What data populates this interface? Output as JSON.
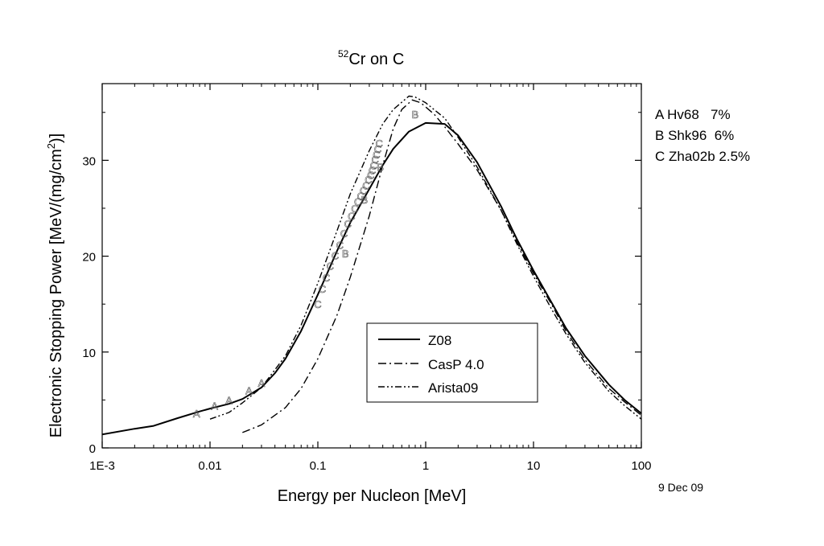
{
  "chart_data": {
    "type": "line",
    "title_sup": "52",
    "title_main": "Cr on C",
    "xlabel": "Energy per Nucleon [MeV]",
    "ylabel_main": "Electronic Stopping Power [MeV/(mg/cm",
    "ylabel_sup": "2",
    "ylabel_end": ")]",
    "xscale": "log",
    "xlim": [
      0.001,
      100
    ],
    "ylim": [
      0,
      38
    ],
    "x_ticks": [
      0.001,
      0.01,
      0.1,
      1,
      10,
      100
    ],
    "x_tick_labels": [
      "1E-3",
      "0.01",
      "0.1",
      "1",
      "10",
      "100"
    ],
    "y_ticks": [
      0,
      10,
      20,
      30
    ],
    "y_tick_labels": [
      "0",
      "10",
      "20",
      "30"
    ],
    "date": "9 Dec 09",
    "legend_position": "bottom-center",
    "series": [
      {
        "name": "Z08",
        "style": "solid",
        "points": [
          [
            0.001,
            1.4
          ],
          [
            0.002,
            2.0
          ],
          [
            0.003,
            2.3
          ],
          [
            0.005,
            3.1
          ],
          [
            0.008,
            3.8
          ],
          [
            0.01,
            4.1
          ],
          [
            0.015,
            4.6
          ],
          [
            0.02,
            5.1
          ],
          [
            0.03,
            6.3
          ],
          [
            0.04,
            7.8
          ],
          [
            0.05,
            9.3
          ],
          [
            0.07,
            12.2
          ],
          [
            0.1,
            16.0
          ],
          [
            0.15,
            20.5
          ],
          [
            0.2,
            23.5
          ],
          [
            0.3,
            27.0
          ],
          [
            0.4,
            29.5
          ],
          [
            0.5,
            31.2
          ],
          [
            0.7,
            33.0
          ],
          [
            1,
            33.9
          ],
          [
            1.5,
            33.8
          ],
          [
            2,
            32.6
          ],
          [
            3,
            29.8
          ],
          [
            5,
            25.2
          ],
          [
            7,
            21.8
          ],
          [
            10,
            18.5
          ],
          [
            15,
            15.0
          ],
          [
            20,
            12.5
          ],
          [
            30,
            9.6
          ],
          [
            50,
            6.6
          ],
          [
            70,
            5.0
          ],
          [
            100,
            3.6
          ]
        ]
      },
      {
        "name": "CasP 4.0",
        "style": "dashdot",
        "points": [
          [
            0.02,
            1.6
          ],
          [
            0.03,
            2.4
          ],
          [
            0.05,
            4.2
          ],
          [
            0.07,
            6.2
          ],
          [
            0.1,
            9.3
          ],
          [
            0.15,
            13.8
          ],
          [
            0.2,
            17.8
          ],
          [
            0.3,
            24.2
          ],
          [
            0.4,
            29.5
          ],
          [
            0.5,
            33.3
          ],
          [
            0.6,
            35.3
          ],
          [
            0.75,
            36.3
          ],
          [
            0.9,
            36.0
          ],
          [
            1.2,
            34.8
          ],
          [
            1.5,
            33.5
          ],
          [
            2,
            31.7
          ],
          [
            3,
            29.0
          ],
          [
            5,
            24.8
          ],
          [
            7,
            21.5
          ],
          [
            10,
            18.2
          ],
          [
            15,
            14.8
          ],
          [
            20,
            12.2
          ],
          [
            30,
            9.2
          ],
          [
            50,
            6.2
          ],
          [
            70,
            4.8
          ],
          [
            100,
            3.4
          ]
        ]
      },
      {
        "name": "Arista09",
        "style": "dashdotdot",
        "points": [
          [
            0.01,
            3.0
          ],
          [
            0.015,
            3.7
          ],
          [
            0.02,
            4.7
          ],
          [
            0.03,
            6.3
          ],
          [
            0.05,
            9.6
          ],
          [
            0.07,
            12.8
          ],
          [
            0.1,
            17.2
          ],
          [
            0.15,
            22.6
          ],
          [
            0.2,
            26.5
          ],
          [
            0.3,
            31.0
          ],
          [
            0.4,
            33.8
          ],
          [
            0.5,
            35.3
          ],
          [
            0.7,
            36.7
          ],
          [
            0.8,
            36.6
          ],
          [
            1,
            36.0
          ],
          [
            1.5,
            34.4
          ],
          [
            2,
            32.4
          ],
          [
            3,
            29.3
          ],
          [
            5,
            24.8
          ],
          [
            7,
            21.3
          ],
          [
            10,
            17.9
          ],
          [
            15,
            14.3
          ],
          [
            20,
            11.9
          ],
          [
            30,
            8.9
          ],
          [
            50,
            5.9
          ],
          [
            70,
            4.4
          ],
          [
            100,
            3.0
          ]
        ]
      }
    ],
    "markers": [
      {
        "label": "A",
        "points": [
          [
            0.0075,
            3.6
          ],
          [
            0.011,
            4.4
          ],
          [
            0.015,
            5.0
          ],
          [
            0.023,
            6.0
          ],
          [
            0.03,
            6.8
          ]
        ]
      },
      {
        "label": "B",
        "points": [
          [
            0.18,
            20.3
          ],
          [
            0.27,
            25.9
          ],
          [
            0.38,
            29.3
          ],
          [
            0.8,
            34.8
          ]
        ]
      },
      {
        "label": "C",
        "points": [
          [
            0.1,
            15.0
          ],
          [
            0.11,
            16.6
          ],
          [
            0.12,
            17.8
          ],
          [
            0.13,
            19.0
          ],
          [
            0.145,
            20.1
          ],
          [
            0.16,
            21.2
          ],
          [
            0.175,
            22.4
          ],
          [
            0.19,
            23.4
          ],
          [
            0.205,
            24.2
          ],
          [
            0.22,
            25.0
          ],
          [
            0.235,
            25.7
          ],
          [
            0.25,
            26.3
          ],
          [
            0.265,
            26.9
          ],
          [
            0.28,
            27.4
          ],
          [
            0.295,
            28.0
          ],
          [
            0.31,
            28.5
          ],
          [
            0.32,
            29.0
          ],
          [
            0.33,
            29.5
          ],
          [
            0.34,
            30.1
          ],
          [
            0.35,
            30.6
          ],
          [
            0.36,
            31.2
          ],
          [
            0.37,
            31.8
          ]
        ]
      }
    ],
    "marker_legend": [
      {
        "label": "A",
        "text": "Hv68   7%"
      },
      {
        "label": "B",
        "text": "Shk96  6%"
      },
      {
        "label": "C",
        "text": "Zha02b 2.5%"
      }
    ]
  }
}
